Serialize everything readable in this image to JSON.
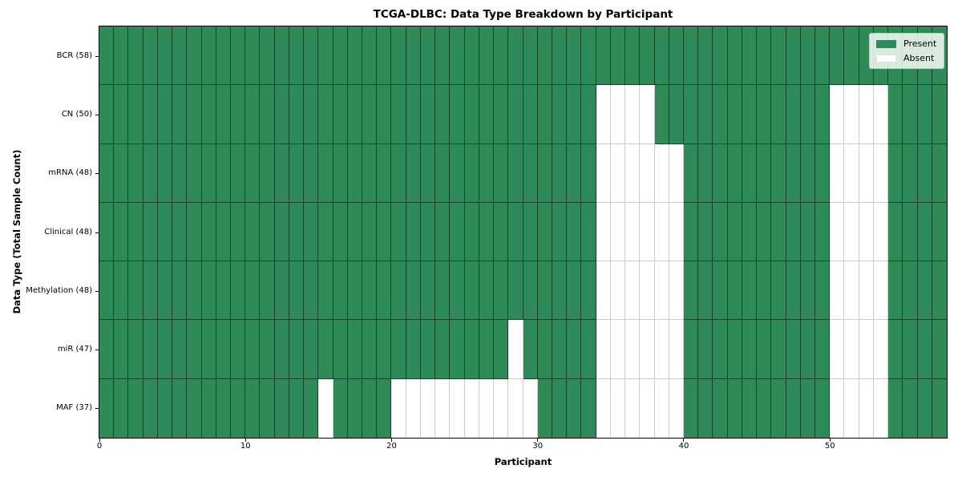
{
  "figure": {
    "title": "TCGA-DLBC: Data Type Breakdown by Participant",
    "xlabel": "Participant",
    "ylabel": "Data Type (Total Sample Count)"
  },
  "legend": {
    "present_label": "Present",
    "absent_label": "Absent"
  },
  "colors": {
    "present": "#2e8b57",
    "absent": "#ffffff"
  },
  "chart_data": {
    "type": "heatmap",
    "title": "TCGA-DLBC: Data Type Breakdown by Participant",
    "xlabel": "Participant",
    "ylabel": "Data Type (Total Sample Count)",
    "x_range": [
      0,
      58
    ],
    "n_participants": 58,
    "x_ticks": [
      0,
      10,
      20,
      30,
      40,
      50
    ],
    "grid": true,
    "legend_position": "upper right",
    "legend_entries": [
      {
        "label": "Present",
        "color": "#2e8b57"
      },
      {
        "label": "Absent",
        "color": "#ffffff"
      }
    ],
    "rows": [
      {
        "label": "BCR (58)",
        "data_type": "BCR",
        "total_samples": 58,
        "absent_participants": []
      },
      {
        "label": "CN (50)",
        "data_type": "CN",
        "total_samples": 50,
        "absent_participants": [
          34,
          35,
          36,
          37,
          50,
          51,
          52,
          53
        ]
      },
      {
        "label": "mRNA (48)",
        "data_type": "mRNA",
        "total_samples": 48,
        "absent_participants": [
          34,
          35,
          36,
          37,
          38,
          39,
          50,
          51,
          52,
          53
        ]
      },
      {
        "label": "Clinical (48)",
        "data_type": "Clinical",
        "total_samples": 48,
        "absent_participants": [
          34,
          35,
          36,
          37,
          38,
          39,
          50,
          51,
          52,
          53
        ]
      },
      {
        "label": "Methylation (48)",
        "data_type": "Methylation",
        "total_samples": 48,
        "absent_participants": [
          34,
          35,
          36,
          37,
          38,
          39,
          50,
          51,
          52,
          53
        ]
      },
      {
        "label": "miR (47)",
        "data_type": "miR",
        "total_samples": 47,
        "absent_participants": [
          28,
          34,
          35,
          36,
          37,
          38,
          39,
          50,
          51,
          52,
          53
        ]
      },
      {
        "label": "MAF (37)",
        "data_type": "MAF",
        "total_samples": 37,
        "absent_participants": [
          15,
          20,
          21,
          22,
          23,
          24,
          25,
          26,
          27,
          28,
          29,
          34,
          35,
          36,
          37,
          38,
          39,
          50,
          51,
          52,
          53
        ]
      }
    ]
  }
}
